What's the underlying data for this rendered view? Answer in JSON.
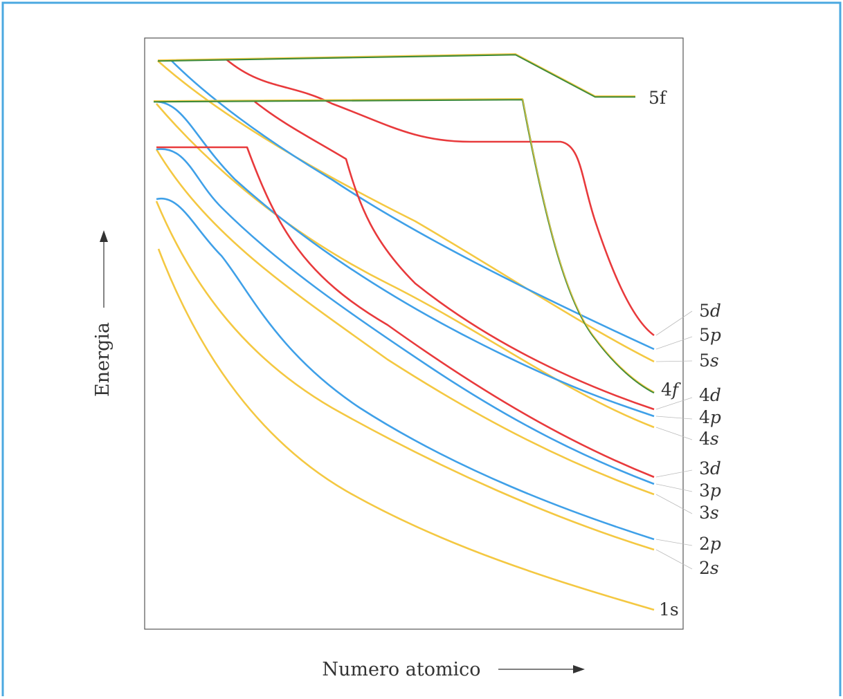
{
  "x_axis_label": "Numero atomico",
  "y_axis_label": "Energia",
  "colors": {
    "frame": "#4aa8e0",
    "s": "#f4c842",
    "p": "#3fa0e8",
    "d": "#e83a3c",
    "f": "#3d8a3a",
    "text": "#333333"
  },
  "orbitals": [
    {
      "id": "1s",
      "base": "1",
      "letter": "s",
      "italic": false
    },
    {
      "id": "2s",
      "base": "2",
      "letter": "s",
      "italic": true
    },
    {
      "id": "2p",
      "base": "2",
      "letter": "p",
      "italic": true
    },
    {
      "id": "3s",
      "base": "3",
      "letter": "s",
      "italic": true
    },
    {
      "id": "3p",
      "base": "3",
      "letter": "p",
      "italic": true
    },
    {
      "id": "3d",
      "base": "3",
      "letter": "d",
      "italic": true
    },
    {
      "id": "4s",
      "base": "4",
      "letter": "s",
      "italic": true
    },
    {
      "id": "4p",
      "base": "4",
      "letter": "p",
      "italic": true
    },
    {
      "id": "4d",
      "base": "4",
      "letter": "d",
      "italic": true
    },
    {
      "id": "4f",
      "base": "4",
      "letter": "f",
      "italic": true
    },
    {
      "id": "5s",
      "base": "5",
      "letter": "s",
      "italic": true
    },
    {
      "id": "5p",
      "base": "5",
      "letter": "p",
      "italic": true
    },
    {
      "id": "5d",
      "base": "5",
      "letter": "d",
      "italic": true
    },
    {
      "id": "5f",
      "base": "5",
      "letter": "f",
      "italic": false
    }
  ]
}
